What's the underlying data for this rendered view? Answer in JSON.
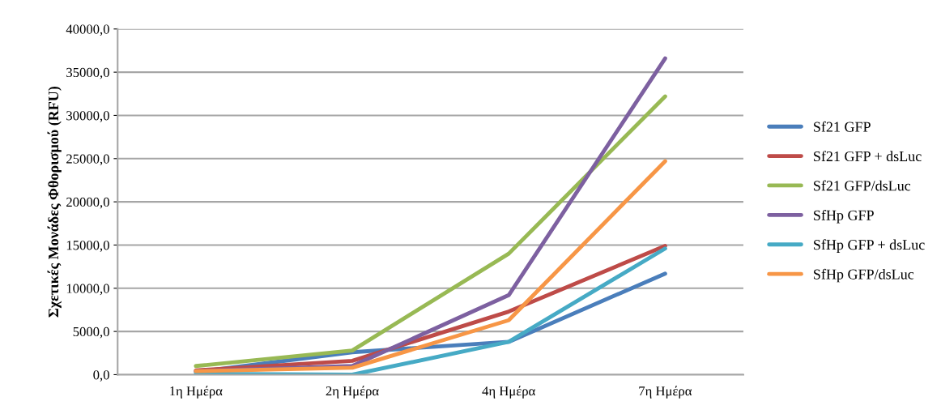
{
  "chart_data": {
    "type": "line",
    "ylabel": "Σχετικές Μονάδες Φθορισμού (RFU)",
    "categories": [
      "1η Ημέρα",
      "2η Ημέρα",
      "4η Ημέρα",
      "7η Ημέρα"
    ],
    "series": [
      {
        "name": "Sf21 GFP",
        "color": "#4a7ebb",
        "values": [
          300,
          2600,
          3800,
          11700
        ]
      },
      {
        "name": "Sf21 GFP + dsLuc",
        "color": "#be4b48",
        "values": [
          500,
          1600,
          7300,
          14900
        ]
      },
      {
        "name": "Sf21 GFP/dsLuc",
        "color": "#98b954",
        "values": [
          1000,
          2800,
          14000,
          32200
        ]
      },
      {
        "name": "SfHp GFP",
        "color": "#7d60a0",
        "values": [
          400,
          1000,
          9200,
          36600
        ]
      },
      {
        "name": "SfHp GFP + dsLuc",
        "color": "#46aac5",
        "values": [
          100,
          0,
          3800,
          14600
        ]
      },
      {
        "name": "SfHp GFP/dsLuc",
        "color": "#f79646",
        "values": [
          400,
          800,
          6300,
          24700
        ]
      }
    ],
    "ylim": [
      0,
      40000
    ],
    "yticks": [
      {
        "value": 0,
        "label": "0,0"
      },
      {
        "value": 5000,
        "label": "5000,0"
      },
      {
        "value": 10000,
        "label": "10000,0"
      },
      {
        "value": 15000,
        "label": "15000,0"
      },
      {
        "value": 20000,
        "label": "20000,0"
      },
      {
        "value": 25000,
        "label": "25000,0"
      },
      {
        "value": 30000,
        "label": "30000,0"
      },
      {
        "value": 35000,
        "label": "35000,0"
      },
      {
        "value": 40000,
        "label": "40000,0"
      }
    ],
    "grid": "y",
    "legend": "right",
    "marker": "none",
    "line_style": "solid"
  }
}
